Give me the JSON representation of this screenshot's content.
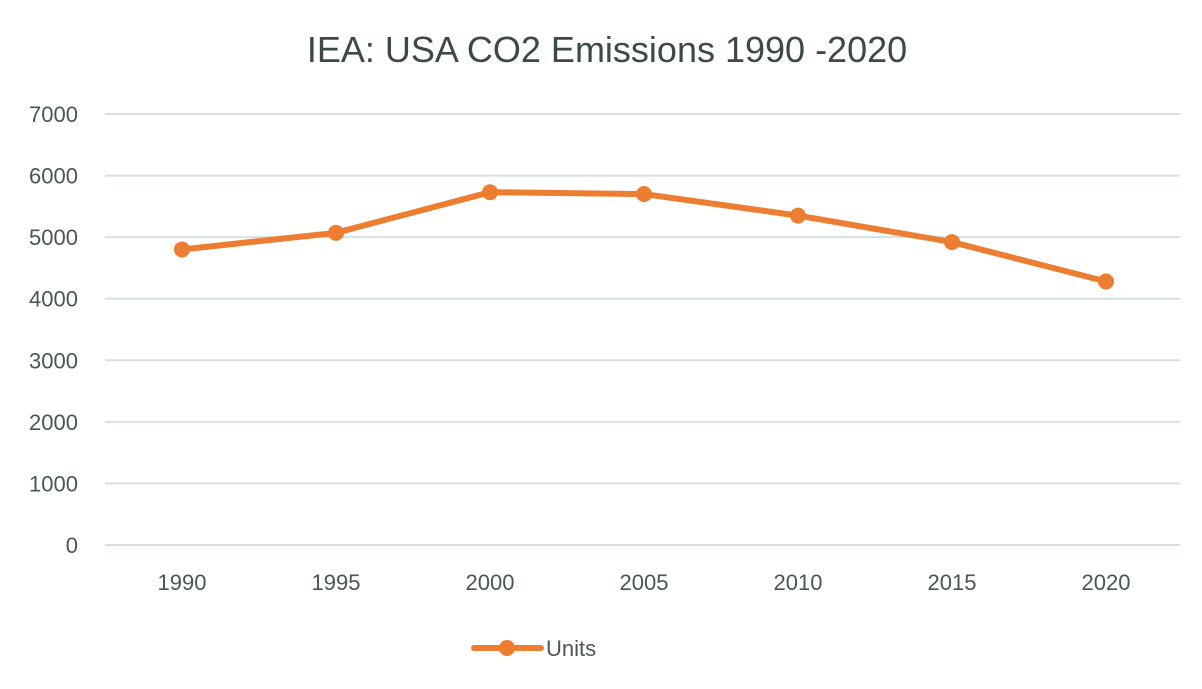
{
  "chart_data": {
    "type": "line",
    "title": "IEA: USA CO2 Emissions 1990 -2020",
    "xlabel": "",
    "ylabel": "",
    "categories": [
      "1990",
      "1995",
      "2000",
      "2005",
      "2010",
      "2015",
      "2020"
    ],
    "series": [
      {
        "name": "Units",
        "values": [
          4800,
          5070,
          5730,
          5700,
          5350,
          4920,
          4280
        ],
        "color": "#ed7d31"
      }
    ],
    "ylim": [
      0,
      7000
    ],
    "yticks": [
      0,
      1000,
      2000,
      3000,
      4000,
      5000,
      6000,
      7000
    ],
    "grid": true,
    "legend": "bottom-center",
    "markers": true
  }
}
